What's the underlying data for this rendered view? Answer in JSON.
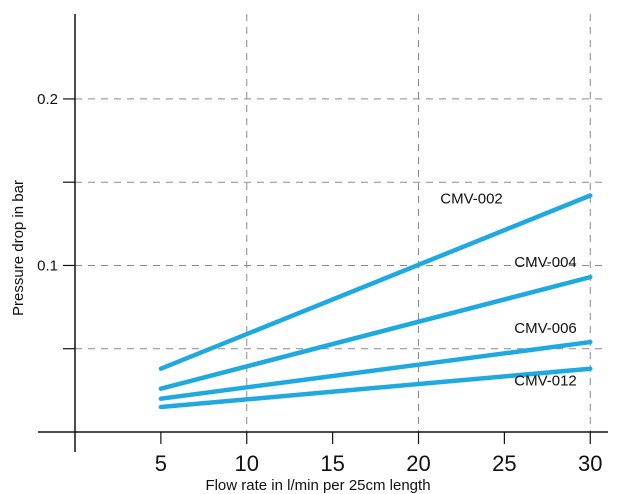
{
  "chart_data": {
    "type": "line",
    "title": "",
    "xlabel": "Flow rate in   l/min per 25cm length",
    "ylabel": "Pressure drop in bar",
    "x_ticks": [
      5,
      10,
      15,
      20,
      25,
      30
    ],
    "y_ticks": [
      0.2,
      0.1
    ],
    "xlim": [
      0,
      30.8
    ],
    "ylim": [
      0,
      0.251
    ],
    "grid": true,
    "legend": "none",
    "series": [
      {
        "name": "CMV-002",
        "x": [
          5,
          30
        ],
        "y": [
          0.038,
          0.142
        ]
      },
      {
        "name": "CMV-004",
        "x": [
          5,
          30
        ],
        "y": [
          0.026,
          0.093
        ]
      },
      {
        "name": "CMV-006",
        "x": [
          5,
          30
        ],
        "y": [
          0.02,
          0.054
        ]
      },
      {
        "name": "CMV-012",
        "x": [
          5,
          30
        ],
        "y": [
          0.015,
          0.038
        ]
      }
    ],
    "colors": {
      "series": "#1fa9de",
      "axis": "#111111",
      "grid": "#8a8a8a"
    }
  }
}
